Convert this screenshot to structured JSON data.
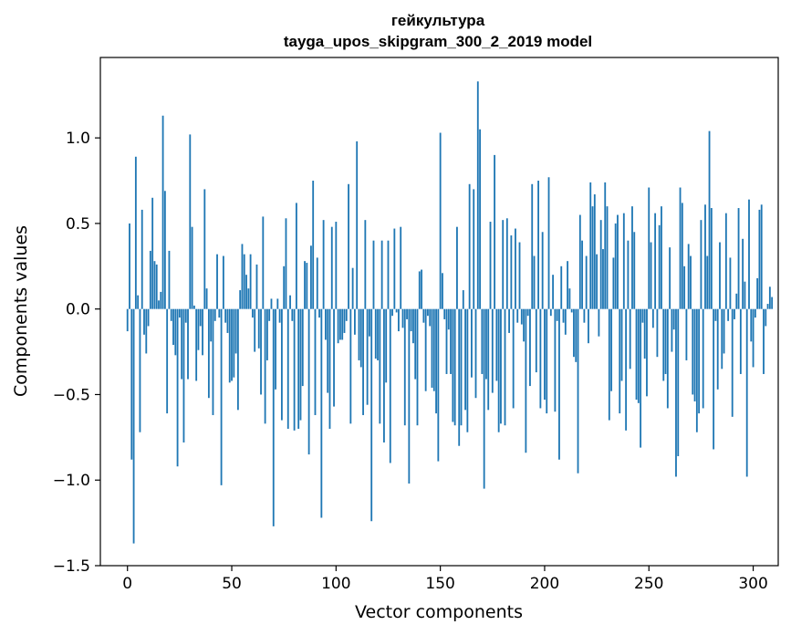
{
  "chart_data": {
    "type": "bar",
    "title": "гейкультура",
    "subtitle": "tayga_upos_skipgram_300_2_2019 model",
    "xlabel": "Vector components",
    "ylabel": "Components values",
    "xlim": [
      -13,
      312
    ],
    "ylim": [
      -1.5,
      1.47
    ],
    "xticks": [
      0,
      50,
      100,
      150,
      200,
      250,
      300
    ],
    "yticks": [
      -1.5,
      -1.0,
      -0.5,
      0.0,
      0.5,
      1.0
    ],
    "xtick_labels": [
      "0",
      "50",
      "100",
      "150",
      "200",
      "250",
      "300"
    ],
    "ytick_labels": [
      "−1.5",
      "−1.0",
      "−0.5",
      "0.0",
      "0.5",
      "1.0"
    ],
    "bar_color": "#1f77b4",
    "grid": false,
    "legend": "none",
    "values": [
      -0.13,
      0.5,
      -0.88,
      -1.37,
      0.89,
      0.08,
      -0.72,
      0.58,
      -0.15,
      -0.26,
      -0.1,
      0.34,
      0.65,
      0.28,
      0.26,
      0.05,
      0.1,
      1.13,
      0.69,
      -0.61,
      0.34,
      -0.07,
      -0.21,
      -0.27,
      -0.92,
      -0.05,
      -0.41,
      -0.78,
      -0.08,
      -0.41,
      1.02,
      0.48,
      0.02,
      -0.42,
      -0.24,
      -0.1,
      -0.27,
      0.7,
      0.12,
      -0.52,
      -0.19,
      -0.62,
      -0.07,
      0.32,
      -0.05,
      -1.03,
      0.31,
      -0.08,
      -0.14,
      -0.43,
      -0.42,
      -0.4,
      -0.26,
      -0.59,
      0.11,
      0.38,
      0.32,
      0.2,
      0.12,
      0.32,
      -0.05,
      -0.25,
      0.26,
      -0.23,
      -0.5,
      0.54,
      -0.67,
      -0.3,
      -0.07,
      0.06,
      -1.27,
      -0.47,
      0.06,
      -0.08,
      -0.65,
      0.25,
      0.53,
      -0.7,
      0.08,
      -0.07,
      -0.71,
      0.62,
      -0.7,
      -0.65,
      -0.45,
      0.28,
      0.27,
      -0.85,
      0.37,
      0.75,
      -0.62,
      0.3,
      -0.05,
      -1.22,
      0.52,
      -0.18,
      -0.49,
      -0.7,
      0.48,
      -0.57,
      0.51,
      -0.2,
      -0.18,
      -0.18,
      -0.14,
      -0.07,
      0.73,
      -0.67,
      0.24,
      -0.15,
      0.98,
      -0.3,
      -0.34,
      -0.62,
      0.52,
      -0.56,
      -0.16,
      -1.24,
      0.4,
      -0.29,
      -0.3,
      -0.67,
      0.4,
      -0.78,
      -0.43,
      0.4,
      -0.9,
      -0.04,
      0.47,
      -0.02,
      -0.13,
      0.48,
      -0.11,
      -0.68,
      -0.06,
      -1.02,
      -0.13,
      -0.2,
      -0.41,
      -0.68,
      0.22,
      0.23,
      -0.08,
      -0.48,
      -0.04,
      -0.1,
      -0.46,
      -0.48,
      -0.61,
      -0.89,
      1.03,
      0.21,
      -0.06,
      -0.38,
      -0.12,
      -0.38,
      -0.66,
      -0.68,
      0.48,
      -0.8,
      -0.68,
      0.11,
      -0.59,
      -0.72,
      0.73,
      -0.4,
      0.7,
      -0.52,
      1.33,
      1.05,
      -0.38,
      -1.05,
      -0.41,
      -0.59,
      0.51,
      -0.49,
      0.9,
      -0.42,
      -0.72,
      -0.67,
      0.52,
      -0.68,
      0.53,
      -0.14,
      0.43,
      -0.58,
      0.47,
      -0.08,
      0.39,
      -0.09,
      -0.19,
      -0.84,
      -0.04,
      -0.45,
      0.73,
      0.31,
      -0.37,
      0.75,
      -0.58,
      0.45,
      -0.53,
      -0.61,
      0.77,
      -0.04,
      0.2,
      -0.6,
      -0.07,
      -0.88,
      0.25,
      -0.08,
      -0.15,
      0.28,
      0.12,
      -0.02,
      -0.28,
      -0.31,
      -0.96,
      0.55,
      0.4,
      -0.08,
      0.31,
      -0.2,
      0.74,
      0.6,
      0.67,
      0.32,
      -0.16,
      0.52,
      0.35,
      0.74,
      0.6,
      -0.65,
      -0.48,
      0.3,
      0.5,
      0.55,
      -0.61,
      -0.42,
      0.56,
      -0.71,
      0.4,
      -0.35,
      0.6,
      0.45,
      -0.53,
      -0.55,
      -0.81,
      -0.08,
      -0.29,
      -0.51,
      0.71,
      0.39,
      -0.11,
      0.56,
      -0.28,
      0.49,
      0.6,
      -0.42,
      -0.38,
      -0.58,
      0.36,
      -0.25,
      -0.12,
      -0.98,
      -0.86,
      0.71,
      0.62,
      0.25,
      -0.3,
      0.38,
      0.31,
      -0.5,
      -0.54,
      -0.72,
      -0.61,
      0.52,
      -0.58,
      0.61,
      0.31,
      1.04,
      0.59,
      -0.82,
      -0.07,
      -0.47,
      0.39,
      -0.35,
      -0.26,
      0.56,
      -0.07,
      0.3,
      -0.63,
      -0.06,
      0.09,
      0.59,
      -0.38,
      0.41,
      0.16,
      -0.98,
      0.64,
      -0.19,
      -0.34,
      -0.05,
      0.18,
      0.58,
      0.61,
      -0.38,
      -0.1,
      0.03,
      0.13,
      0.07
    ]
  }
}
